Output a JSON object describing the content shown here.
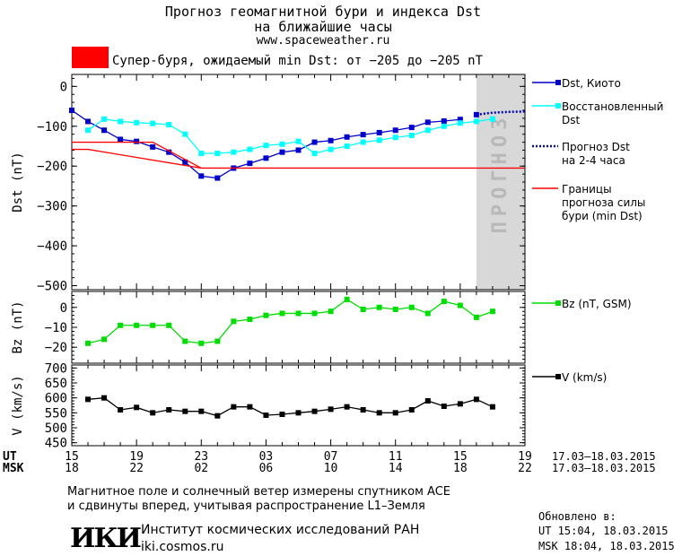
{
  "header": {
    "title_line1": "Прогноз геомагнитной бури и индекса Dst",
    "title_line2": "на ближайшие часы",
    "url": "www.spaceweather.ru",
    "storm_text": "Супер-буря, ожидаемый min Dst: от −205 до −205 nT",
    "storm_color": "#ff0000"
  },
  "footer": {
    "note_line1": "Магнитное поле и солнечный ветер измерены спутником ACE",
    "note_line2": "и сдвинуты вперед, учитывая распространение L1–Земля",
    "logo": "ИКИ",
    "institute": "Институт космических исследований РАН",
    "site": "iki.cosmos.ru",
    "updated_label": "Обновлено в:",
    "updated_ut": "UT  15:04, 18.03.2015",
    "updated_msk": "MSK 18:04, 18.03.2015"
  },
  "chart_data": {
    "type": "line",
    "time_axis": {
      "ut_label": "UT",
      "msk_label": "MSK",
      "ut_ticks": [
        "15",
        "19",
        "23",
        "03",
        "07",
        "11",
        "15",
        "19"
      ],
      "msk_ticks": [
        "18",
        "22",
        "02",
        "06",
        "10",
        "14",
        "18",
        "22"
      ],
      "ut_range": "17.03–18.03.2015",
      "msk_range": "17.03–18.03.2015",
      "hours_range": [
        0,
        28
      ]
    },
    "forecast_label": "ПРОГНОЗ",
    "panels": [
      {
        "id": "dst",
        "ylabel": "Dst (nT)",
        "ylim": [
          -510,
          30
        ],
        "yticks": [
          0,
          -100,
          -200,
          -300,
          -400,
          -500
        ],
        "series": [
          {
            "name": "Dst, Киото",
            "color": "#0000cc",
            "marker": "square",
            "x": [
              0,
              1,
              2,
              3,
              4,
              5,
              6,
              7,
              8,
              9,
              10,
              11,
              12,
              13,
              14,
              15,
              16,
              17,
              18,
              19,
              20,
              21,
              22,
              23,
              24
            ],
            "y": [
              -60,
              -88,
              -110,
              -133,
              -138,
              -152,
              -165,
              -190,
              -225,
              -230,
              -205,
              -193,
              -180,
              -165,
              -160,
              -140,
              -136,
              -127,
              -121,
              -116,
              -110,
              -103,
              -90,
              -87,
              -83
            ]
          },
          {
            "name": "Dst, Киото (последнее значение)",
            "color": "#0000cc",
            "marker": "square",
            "x": [
              25
            ],
            "y": [
              -71
            ]
          },
          {
            "name": "Восстановленный Dst",
            "color": "#00ffff",
            "marker": "square",
            "x": [
              1,
              2,
              3,
              4,
              5,
              6,
              7,
              8,
              9,
              10,
              11,
              12,
              13,
              14,
              15,
              16,
              17,
              18,
              19,
              20,
              21,
              22,
              23,
              24,
              25,
              26
            ],
            "y": [
              -110,
              -82,
              -88,
              -91,
              -93,
              -96,
              -120,
              -168,
              -168,
              -165,
              -158,
              -148,
              -145,
              -138,
              -168,
              -158,
              -150,
              -140,
              -135,
              -128,
              -123,
              -110,
              -100,
              -92,
              -88,
              -82
            ]
          },
          {
            "name": "Прогноз Dst на 2-4 часа",
            "color": "#0000cc",
            "style": "dotted",
            "x": [
              25,
              26,
              27,
              28
            ],
            "y": [
              -71,
              -66,
              -64,
              -63
            ]
          },
          {
            "name": "Границы прогноза силы бури (min Dst)",
            "color": "#ff0000",
            "x": [
              0,
              1,
              8,
              28
            ],
            "y": [
              -158,
              -158,
              -205,
              -205
            ]
          },
          {
            "name": "Границы (верхняя)",
            "color": "#ff0000",
            "x": [
              0,
              1,
              5,
              8
            ],
            "y": [
              -140,
              -140,
              -140,
              -205
            ]
          }
        ],
        "legend": [
          {
            "label_lines": [
              "Dst, Киото"
            ],
            "color": "#0000cc",
            "style": "solid",
            "marker": true
          },
          {
            "label_lines": [
              "Восстановленный",
              "Dst"
            ],
            "color": "#00ffff",
            "style": "solid",
            "marker": true
          },
          {
            "label_lines": [
              "Прогноз Dst",
              "на 2-4 часа"
            ],
            "color": "#0000cc",
            "style": "dotted",
            "marker": false
          },
          {
            "label_lines": [
              "Границы",
              "прогноза силы",
              "бури (min Dst)"
            ],
            "color": "#ff0000",
            "style": "solid",
            "marker": false
          }
        ]
      },
      {
        "id": "bz",
        "ylabel": "Bz (nT)",
        "ylim": [
          -28,
          8
        ],
        "yticks": [
          0,
          -10,
          -20
        ],
        "series": [
          {
            "name": "Bz (nT, GSM)",
            "color": "#00dd00",
            "marker": "square",
            "x": [
              1,
              2,
              3,
              4,
              5,
              6,
              7,
              8,
              9,
              10,
              11,
              12,
              13,
              14,
              15,
              16,
              17,
              18,
              19,
              20,
              21,
              22,
              23,
              24,
              25,
              26
            ],
            "y": [
              -18,
              -16,
              -9,
              -9,
              -9,
              -9,
              -17,
              -18,
              -17,
              -7,
              -6,
              -4,
              -3,
              -3,
              -3,
              -2,
              4,
              -1,
              0,
              -1,
              0,
              -3,
              3,
              1,
              -5,
              -2
            ]
          }
        ],
        "legend": [
          {
            "label_lines": [
              "Bz (nT, GSM)"
            ],
            "color": "#00dd00",
            "style": "solid",
            "marker": true
          }
        ]
      },
      {
        "id": "v",
        "ylabel": "V (km/s)",
        "ylim": [
          440,
          710
        ],
        "yticks": [
          700,
          650,
          600,
          550,
          500,
          450
        ],
        "series": [
          {
            "name": "V (km/s)",
            "color": "#000000",
            "marker": "square",
            "x": [
              1,
              2,
              3,
              4,
              5,
              6,
              7,
              8,
              9,
              10,
              11,
              12,
              13,
              14,
              15,
              16,
              17,
              18,
              19,
              20,
              21,
              22,
              23,
              24,
              25,
              26
            ],
            "y": [
              595,
              600,
              560,
              568,
              550,
              560,
              555,
              555,
              540,
              570,
              570,
              542,
              545,
              550,
              555,
              562,
              570,
              560,
              550,
              550,
              560,
              590,
              572,
              580,
              595,
              570
            ]
          }
        ],
        "legend": [
          {
            "label_lines": [
              "V (km/s)"
            ],
            "color": "#000000",
            "style": "solid",
            "marker": true
          }
        ]
      }
    ]
  }
}
